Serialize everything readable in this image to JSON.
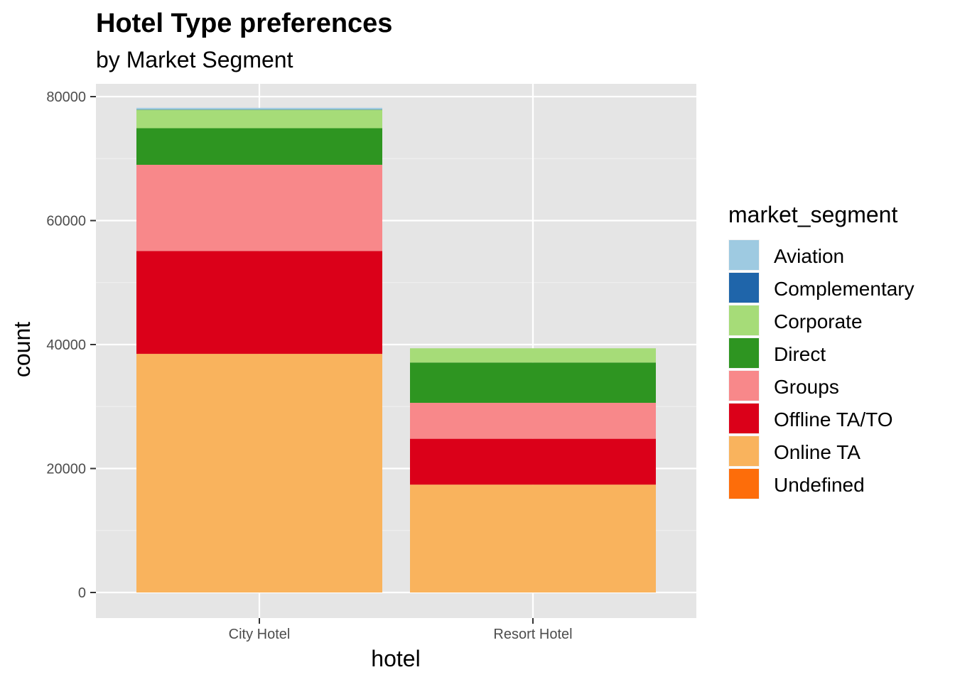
{
  "chart_data": {
    "type": "bar",
    "stacked": true,
    "title": "Hotel Type preferences",
    "subtitle": "by Market Segment",
    "xlabel": "hotel",
    "ylabel": "count",
    "ylim": [
      0,
      82000
    ],
    "yticks": [
      0,
      20000,
      40000,
      60000,
      80000
    ],
    "grid": true,
    "legend_position": "right",
    "legend_title": "market_segment",
    "categories": [
      "City Hotel",
      "Resort Hotel"
    ],
    "series": [
      {
        "name": "Aviation",
        "color": "#9ecae1",
        "values": [
          235,
          0
        ]
      },
      {
        "name": "Complementary",
        "color": "#1f65aa",
        "values": [
          50,
          0
        ]
      },
      {
        "name": "Corporate",
        "color": "#a6dc78",
        "values": [
          3000,
          2300
        ]
      },
      {
        "name": "Direct",
        "color": "#2e9521",
        "values": [
          5900,
          6500
        ]
      },
      {
        "name": "Groups",
        "color": "#f8888a",
        "values": [
          13900,
          5800
        ]
      },
      {
        "name": "Offline TA/TO",
        "color": "#db0019",
        "values": [
          16600,
          7400
        ]
      },
      {
        "name": "Online TA",
        "color": "#f9b35d",
        "values": [
          38500,
          17400
        ]
      },
      {
        "name": "Undefined",
        "color": "#fd6d0a",
        "values": [
          0,
          0
        ]
      }
    ]
  }
}
